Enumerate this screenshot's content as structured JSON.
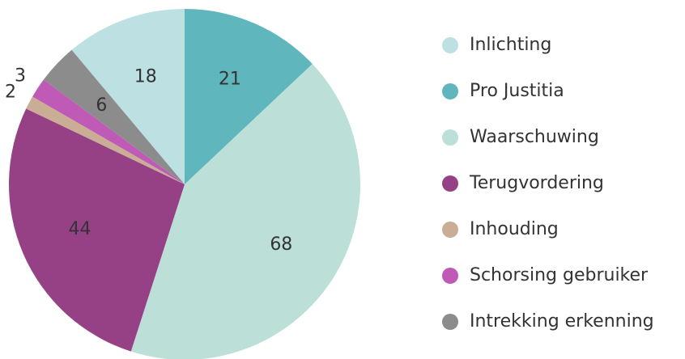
{
  "chart_data": {
    "type": "pie",
    "categories": [
      "Inlichting",
      "Pro Justitia",
      "Waarschuwing",
      "Terugvordering",
      "Inhouding",
      "Schorsing gebruiker",
      "Intrekking erkenning"
    ],
    "values": [
      18,
      21,
      68,
      44,
      2,
      3,
      6
    ],
    "colors": [
      "#bde0e3",
      "#5fb7bd",
      "#bcdfd8",
      "#964186",
      "#c9ad94",
      "#bf5bb6",
      "#8c8c8c"
    ]
  }
}
